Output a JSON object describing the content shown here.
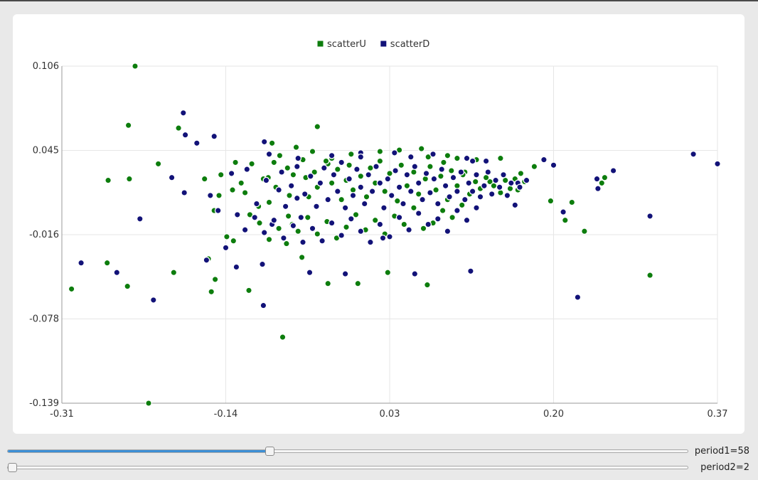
{
  "chart_data": {
    "type": "scatter",
    "title": "",
    "xlabel": "",
    "ylabel": "",
    "xlim": [
      -0.31,
      0.37
    ],
    "ylim": [
      -0.139,
      0.106
    ],
    "x_ticks": [
      "-0.31",
      "-0.14",
      "0.03",
      "0.20",
      "0.37"
    ],
    "y_ticks": [
      "0.106",
      "0.045",
      "-0.016",
      "-0.078",
      "-0.139"
    ],
    "legend_position": "top-center",
    "grid": true,
    "series": [
      {
        "name": "scatterU",
        "color": "#0d7d0d",
        "points": [
          [
            -0.234,
            0.106
          ],
          [
            -0.241,
            0.063
          ],
          [
            -0.21,
            0.035
          ],
          [
            -0.262,
            0.023
          ],
          [
            -0.24,
            0.024
          ],
          [
            -0.3,
            -0.056
          ],
          [
            -0.263,
            -0.037
          ],
          [
            -0.242,
            -0.054
          ],
          [
            -0.194,
            -0.044
          ],
          [
            -0.189,
            0.061
          ],
          [
            -0.22,
            -0.139
          ],
          [
            -0.155,
            -0.058
          ],
          [
            -0.158,
            -0.034
          ],
          [
            -0.151,
            -0.049
          ],
          [
            -0.152,
            0.001
          ],
          [
            -0.145,
            0.027
          ],
          [
            -0.133,
            0.016
          ],
          [
            -0.132,
            -0.021
          ],
          [
            -0.124,
            0.021
          ],
          [
            -0.116,
            -0.057
          ],
          [
            -0.12,
            0.014
          ],
          [
            -0.101,
            0.024
          ],
          [
            -0.106,
            0.004
          ],
          [
            -0.092,
            0.05
          ],
          [
            -0.084,
            0.041
          ],
          [
            -0.067,
            0.047
          ],
          [
            -0.081,
            -0.091
          ],
          [
            -0.045,
            0.062
          ],
          [
            -0.05,
            0.044
          ],
          [
            -0.095,
            0.007
          ],
          [
            -0.061,
            -0.033
          ],
          [
            -0.071,
            -0.009
          ],
          [
            -0.034,
            0.035
          ],
          [
            -0.077,
            -0.023
          ],
          [
            -0.034,
            -0.052
          ],
          [
            -0.003,
            -0.052
          ],
          [
            0.028,
            -0.044
          ],
          [
            0.063,
            0.046
          ],
          [
            0.069,
            -0.053
          ],
          [
            0.086,
            0.036
          ],
          [
            0.108,
            0.029
          ],
          [
            0.134,
            0.022
          ],
          [
            0.145,
            0.039
          ],
          [
            0.166,
            0.028
          ],
          [
            0.163,
            0.016
          ],
          [
            0.18,
            0.033
          ],
          [
            0.197,
            0.008
          ],
          [
            0.212,
            -0.006
          ],
          [
            0.219,
            0.007
          ],
          [
            0.232,
            -0.014
          ],
          [
            0.25,
            0.021
          ],
          [
            0.253,
            0.025
          ],
          [
            0.3,
            -0.046
          ],
          [
            -0.162,
            0.024
          ],
          [
            -0.147,
            0.012
          ],
          [
            -0.139,
            -0.018
          ],
          [
            -0.13,
            0.036
          ],
          [
            -0.113,
            0.035
          ],
          [
            -0.096,
            0.025
          ],
          [
            -0.088,
            0.018
          ],
          [
            -0.076,
            0.032
          ],
          [
            -0.074,
            0.012
          ],
          [
            -0.07,
            0.027
          ],
          [
            -0.057,
            0.025
          ],
          [
            -0.054,
            0.011
          ],
          [
            -0.048,
            0.029
          ],
          [
            -0.045,
            0.018
          ],
          [
            -0.036,
            0.037
          ],
          [
            -0.03,
            0.021
          ],
          [
            -0.024,
            0.031
          ],
          [
            -0.02,
            0.009
          ],
          [
            -0.015,
            0.023
          ],
          [
            -0.012,
            0.034
          ],
          [
            -0.008,
            0.016
          ],
          [
            0.0,
            0.026
          ],
          [
            0.006,
            0.011
          ],
          [
            0.01,
            0.032
          ],
          [
            0.015,
            0.021
          ],
          [
            0.02,
            0.037
          ],
          [
            0.025,
            0.015
          ],
          [
            0.03,
            0.028
          ],
          [
            0.038,
            0.008
          ],
          [
            0.042,
            0.034
          ],
          [
            0.048,
            0.019
          ],
          [
            0.055,
            0.029
          ],
          [
            0.06,
            0.013
          ],
          [
            0.067,
            0.024
          ],
          [
            0.072,
            0.033
          ],
          [
            0.078,
            0.016
          ],
          [
            0.083,
            0.026
          ],
          [
            0.09,
            0.009
          ],
          [
            0.094,
            0.03
          ],
          [
            0.1,
            0.019
          ],
          [
            0.106,
            0.027
          ],
          [
            0.113,
            0.013
          ],
          [
            0.119,
            0.022
          ],
          [
            0.124,
            0.017
          ],
          [
            0.13,
            0.025
          ],
          [
            0.138,
            0.019
          ],
          [
            0.145,
            0.014
          ],
          [
            0.15,
            0.023
          ],
          [
            0.155,
            0.017
          ],
          [
            0.16,
            0.024
          ],
          [
            0.17,
            0.022
          ],
          [
            0.12,
            0.038
          ],
          [
            0.09,
            0.041
          ],
          [
            0.105,
            0.005
          ],
          [
            0.095,
            -0.004
          ],
          [
            0.085,
            0.001
          ],
          [
            0.075,
            -0.008
          ],
          [
            0.065,
            -0.012
          ],
          [
            0.055,
            0.003
          ],
          [
            0.045,
            -0.009
          ],
          [
            0.035,
            -0.003
          ],
          [
            0.025,
            -0.016
          ],
          [
            0.015,
            -0.006
          ],
          [
            0.005,
            -0.013
          ],
          [
            -0.005,
            -0.002
          ],
          [
            -0.015,
            -0.011
          ],
          [
            -0.025,
            -0.019
          ],
          [
            -0.035,
            -0.007
          ],
          [
            -0.045,
            -0.016
          ],
          [
            -0.055,
            -0.004
          ],
          [
            -0.065,
            -0.014
          ],
          [
            -0.075,
            -0.003
          ],
          [
            -0.085,
            -0.012
          ],
          [
            -0.095,
            -0.02
          ],
          [
            -0.105,
            -0.008
          ],
          [
            -0.115,
            -0.002
          ],
          [
            0.04,
            0.045
          ],
          [
            0.02,
            0.044
          ],
          [
            -0.01,
            0.042
          ],
          [
            -0.03,
            0.039
          ],
          [
            0.07,
            0.04
          ],
          [
            0.1,
            0.039
          ],
          [
            -0.06,
            0.038
          ],
          [
            -0.09,
            0.036
          ]
        ]
      },
      {
        "name": "scatterD",
        "color": "#121278",
        "points": [
          [
            -0.29,
            -0.037
          ],
          [
            -0.253,
            -0.044
          ],
          [
            -0.229,
            -0.005
          ],
          [
            -0.215,
            -0.064
          ],
          [
            -0.196,
            0.025
          ],
          [
            -0.184,
            0.072
          ],
          [
            -0.182,
            0.056
          ],
          [
            -0.183,
            0.014
          ],
          [
            -0.17,
            0.05
          ],
          [
            -0.152,
            0.055
          ],
          [
            -0.16,
            -0.035
          ],
          [
            -0.14,
            -0.026
          ],
          [
            -0.129,
            -0.04
          ],
          [
            -0.102,
            -0.038
          ],
          [
            -0.101,
            -0.068
          ],
          [
            -0.1,
            0.051
          ],
          [
            -0.085,
            0.016
          ],
          [
            -0.066,
            0.01
          ],
          [
            -0.053,
            -0.044
          ],
          [
            -0.016,
            -0.045
          ],
          [
            0.0,
            0.043
          ],
          [
            0.052,
            0.04
          ],
          [
            0.056,
            -0.045
          ],
          [
            0.023,
            -0.019
          ],
          [
            0.114,
            -0.043
          ],
          [
            0.116,
            0.037
          ],
          [
            0.13,
            0.037
          ],
          [
            0.16,
            0.005
          ],
          [
            0.163,
            0.021
          ],
          [
            0.19,
            0.038
          ],
          [
            0.2,
            0.034
          ],
          [
            0.21,
            0.0
          ],
          [
            0.225,
            -0.062
          ],
          [
            0.245,
            0.024
          ],
          [
            0.246,
            0.017
          ],
          [
            0.262,
            0.03
          ],
          [
            0.3,
            -0.003
          ],
          [
            0.345,
            0.042
          ],
          [
            0.37,
            0.035
          ],
          [
            -0.156,
            0.012
          ],
          [
            -0.148,
            0.001
          ],
          [
            -0.134,
            0.028
          ],
          [
            -0.128,
            -0.002
          ],
          [
            -0.118,
            0.031
          ],
          [
            -0.108,
            0.006
          ],
          [
            -0.098,
            0.023
          ],
          [
            -0.092,
            -0.009
          ],
          [
            -0.082,
            0.029
          ],
          [
            -0.078,
            0.004
          ],
          [
            -0.072,
            0.019
          ],
          [
            -0.066,
            0.033
          ],
          [
            -0.062,
            -0.004
          ],
          [
            -0.058,
            0.013
          ],
          [
            -0.052,
            0.026
          ],
          [
            -0.046,
            0.004
          ],
          [
            -0.042,
            0.021
          ],
          [
            -0.038,
            0.032
          ],
          [
            -0.034,
            0.009
          ],
          [
            -0.028,
            0.027
          ],
          [
            -0.024,
            0.015
          ],
          [
            -0.02,
            0.036
          ],
          [
            -0.016,
            0.003
          ],
          [
            -0.012,
            0.024
          ],
          [
            -0.008,
            0.012
          ],
          [
            -0.004,
            0.031
          ],
          [
            0.0,
            0.018
          ],
          [
            0.004,
            0.006
          ],
          [
            0.008,
            0.027
          ],
          [
            0.012,
            0.015
          ],
          [
            0.016,
            0.033
          ],
          [
            0.02,
            0.021
          ],
          [
            0.024,
            0.003
          ],
          [
            0.028,
            0.024
          ],
          [
            0.032,
            0.012
          ],
          [
            0.036,
            0.03
          ],
          [
            0.04,
            0.018
          ],
          [
            0.044,
            0.006
          ],
          [
            0.048,
            0.027
          ],
          [
            0.052,
            0.015
          ],
          [
            0.056,
            0.033
          ],
          [
            0.06,
            0.021
          ],
          [
            0.064,
            0.009
          ],
          [
            0.068,
            0.028
          ],
          [
            0.072,
            0.014
          ],
          [
            0.076,
            0.024
          ],
          [
            0.08,
            0.006
          ],
          [
            0.084,
            0.031
          ],
          [
            0.088,
            0.019
          ],
          [
            0.092,
            0.011
          ],
          [
            0.096,
            0.025
          ],
          [
            0.1,
            0.015
          ],
          [
            0.104,
            0.029
          ],
          [
            0.108,
            0.009
          ],
          [
            0.112,
            0.021
          ],
          [
            0.116,
            0.015
          ],
          [
            0.12,
            0.027
          ],
          [
            0.124,
            0.011
          ],
          [
            0.128,
            0.019
          ],
          [
            0.132,
            0.029
          ],
          [
            0.136,
            0.013
          ],
          [
            0.14,
            0.023
          ],
          [
            0.144,
            0.018
          ],
          [
            0.148,
            0.027
          ],
          [
            0.152,
            0.012
          ],
          [
            0.156,
            0.021
          ],
          [
            0.165,
            0.018
          ],
          [
            0.172,
            0.023
          ],
          [
            -0.05,
            -0.012
          ],
          [
            -0.04,
            -0.021
          ],
          [
            -0.03,
            -0.008
          ],
          [
            -0.02,
            -0.017
          ],
          [
            -0.01,
            -0.005
          ],
          [
            0.0,
            -0.014
          ],
          [
            0.01,
            -0.022
          ],
          [
            0.02,
            -0.009
          ],
          [
            0.03,
            -0.018
          ],
          [
            0.04,
            -0.004
          ],
          [
            0.05,
            -0.013
          ],
          [
            0.06,
            -0.001
          ],
          [
            0.07,
            -0.009
          ],
          [
            0.08,
            -0.005
          ],
          [
            0.09,
            -0.014
          ],
          [
            0.1,
            0.001
          ],
          [
            0.11,
            -0.006
          ],
          [
            0.12,
            0.003
          ],
          [
            -0.06,
            -0.022
          ],
          [
            -0.07,
            -0.01
          ],
          [
            -0.08,
            -0.019
          ],
          [
            -0.09,
            -0.006
          ],
          [
            -0.1,
            -0.015
          ],
          [
            -0.11,
            -0.004
          ],
          [
            -0.12,
            -0.013
          ],
          [
            -0.03,
            0.041
          ],
          [
            0.0,
            0.04
          ],
          [
            0.035,
            0.043
          ],
          [
            0.075,
            0.042
          ],
          [
            0.11,
            0.039
          ],
          [
            -0.065,
            0.039
          ],
          [
            -0.095,
            0.042
          ]
        ]
      }
    ]
  },
  "controls": {
    "slider1": {
      "label": "period1=58",
      "value": 58,
      "fraction": 0.384
    },
    "slider2": {
      "label": "period2=2",
      "value": 2,
      "fraction": 0.006
    }
  }
}
